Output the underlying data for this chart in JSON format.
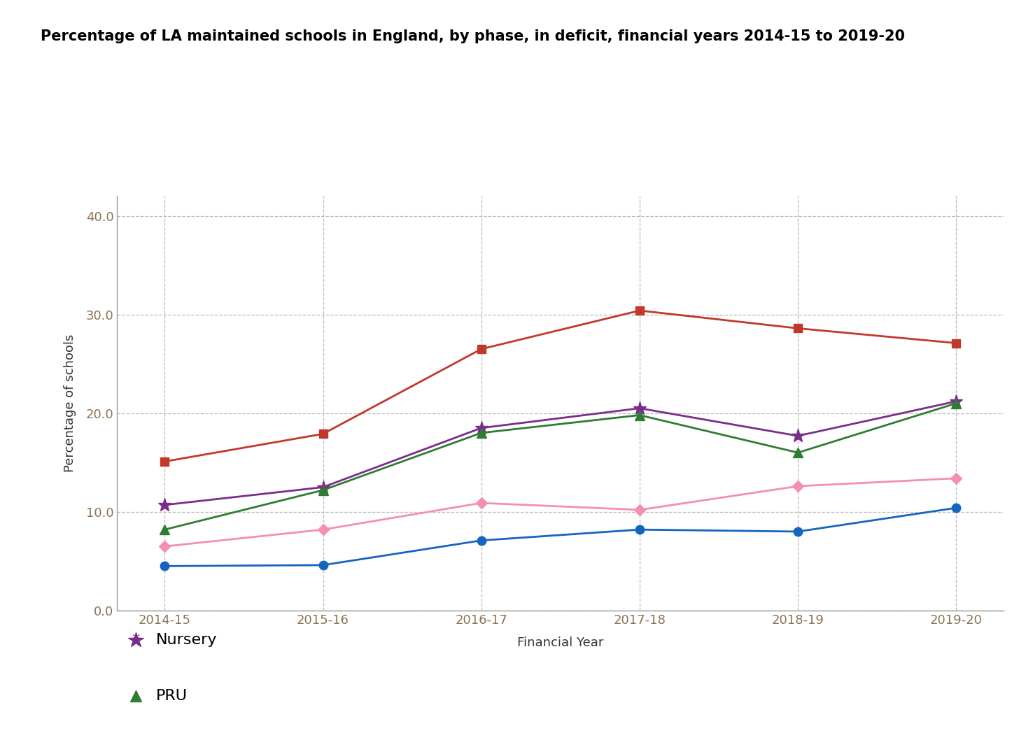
{
  "title": "Percentage of LA maintained schools in England, by phase, in deficit, financial years 2014-15 to 2019-20",
  "xlabel": "Financial Year",
  "ylabel": "Percentage of schools",
  "years": [
    "2014-15",
    "2015-16",
    "2016-17",
    "2017-18",
    "2018-19",
    "2019-20"
  ],
  "series": {
    "Nursery": {
      "values": [
        10.7,
        12.5,
        18.5,
        20.5,
        17.7,
        21.2
      ],
      "color": "#7B2D8B",
      "marker": "*",
      "markersize": 14,
      "linewidth": 2.0
    },
    "PRU": {
      "values": [
        8.2,
        12.2,
        18.0,
        19.8,
        16.0,
        21.0
      ],
      "color": "#2E7D32",
      "marker": "^",
      "markersize": 10,
      "linewidth": 2.0
    },
    "Primary": {
      "values": [
        4.5,
        4.6,
        7.1,
        8.2,
        8.0,
        10.4
      ],
      "color": "#1565C0",
      "marker": "o",
      "markersize": 9,
      "linewidth": 2.0
    },
    "Secondary": {
      "values": [
        15.1,
        17.9,
        26.5,
        30.4,
        28.6,
        27.1
      ],
      "color": "#C0392B",
      "marker": "s",
      "markersize": 9,
      "linewidth": 2.0
    },
    "Special": {
      "values": [
        6.5,
        8.2,
        10.9,
        10.2,
        12.6,
        13.4
      ],
      "color": "#F48FB1",
      "marker": "D",
      "markersize": 8,
      "linewidth": 2.0
    }
  },
  "ylim": [
    0.0,
    42.0
  ],
  "yticks": [
    0.0,
    10.0,
    20.0,
    30.0,
    40.0
  ],
  "background_color": "#ffffff",
  "grid_color": "#bbbbbb",
  "tick_label_color": "#8B7355",
  "spine_color": "#999999",
  "title_fontsize": 15,
  "axis_label_fontsize": 13,
  "tick_fontsize": 13,
  "legend_fontsize": 16
}
